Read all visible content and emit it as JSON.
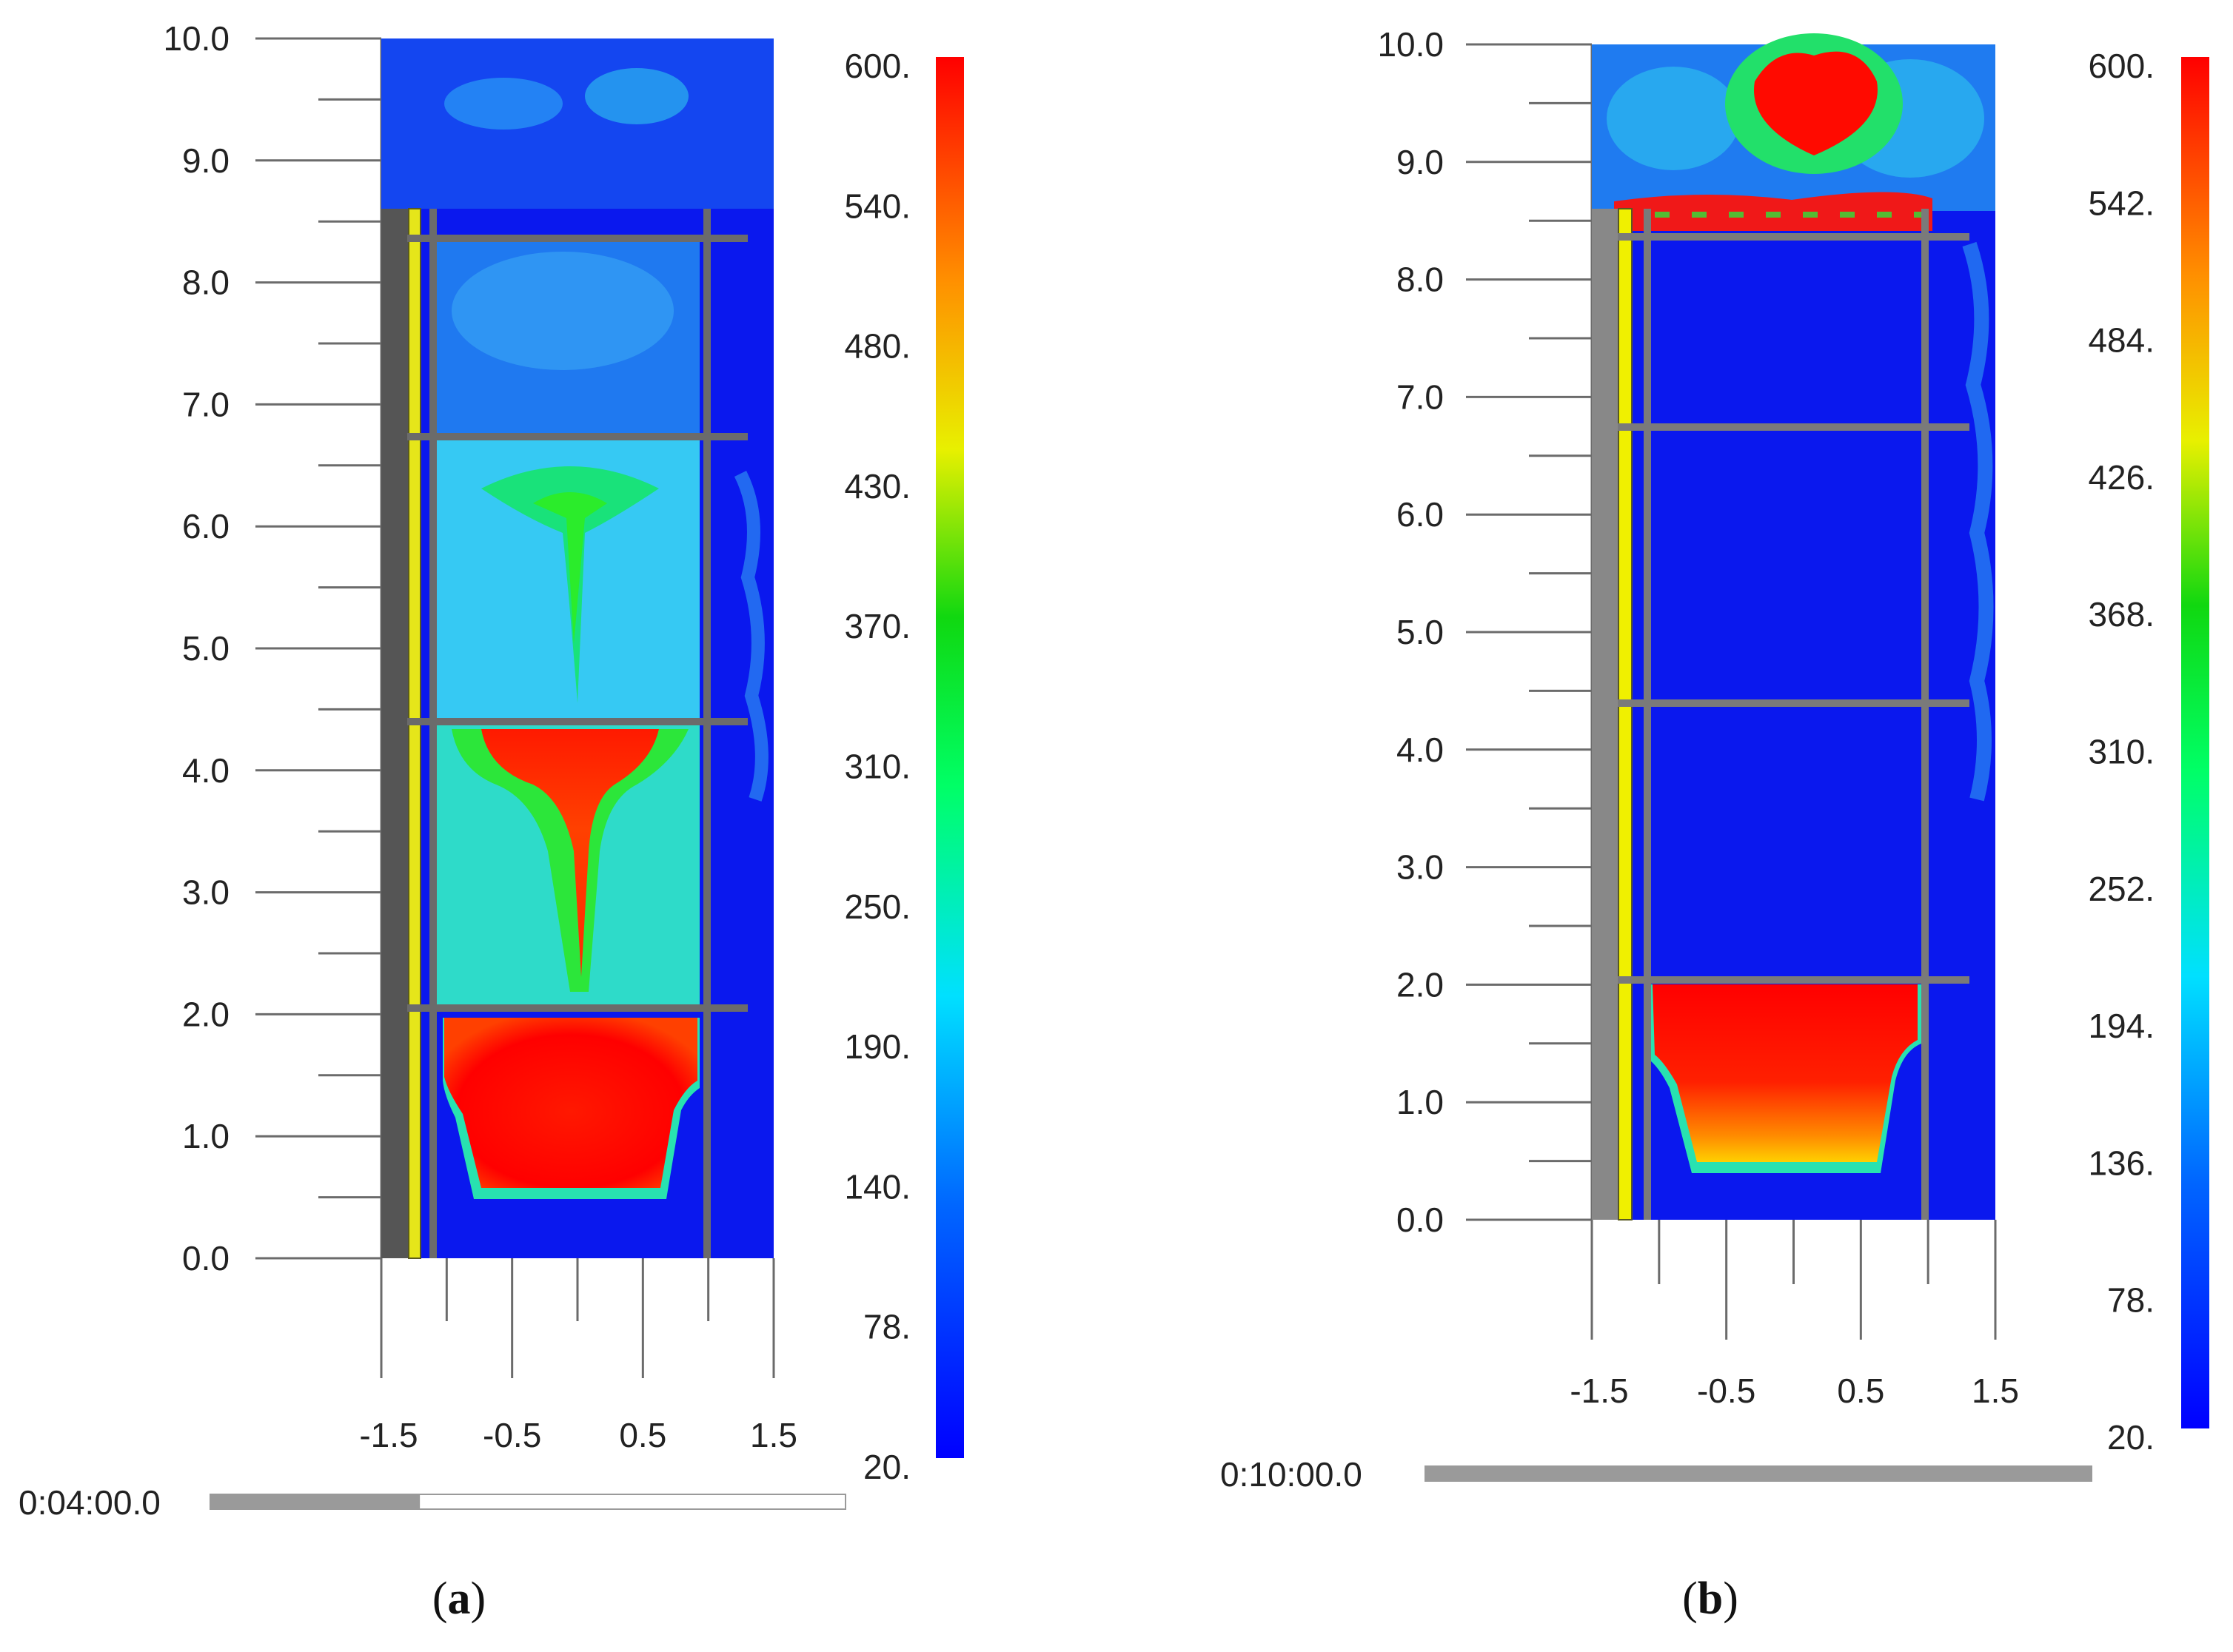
{
  "panels": [
    {
      "caption_letter": "a",
      "time": "0:04:00.0",
      "time_progress": 0.33,
      "y_ticks": [
        "10.0",
        "9.0",
        "8.0",
        "7.0",
        "6.0",
        "5.0",
        "4.0",
        "3.0",
        "2.0",
        "1.0",
        "0.0"
      ],
      "x_ticks": [
        "-1.5",
        "-0.5",
        "0.5",
        "1.5"
      ],
      "colorbar_ticks": [
        "600.",
        "540.",
        "480.",
        "430.",
        "370.",
        "310.",
        "250.",
        "190.",
        "140.",
        "78.",
        "20."
      ]
    },
    {
      "caption_letter": "b",
      "time": "0:10:00.0",
      "time_progress": 1.0,
      "y_ticks": [
        "10.0",
        "9.0",
        "8.0",
        "7.0",
        "6.0",
        "5.0",
        "4.0",
        "3.0",
        "2.0",
        "1.0",
        "0.0"
      ],
      "x_ticks": [
        "-1.5",
        "-0.5",
        "0.5",
        "1.5"
      ],
      "colorbar_ticks": [
        "600.",
        "542.",
        "484.",
        "426.",
        "368.",
        "310.",
        "252.",
        "194.",
        "136.",
        "78.",
        "20."
      ]
    }
  ],
  "colors": {
    "cold": "#0a1af0",
    "cyan": "#19e6e6",
    "green": "#1ee61e",
    "yellow": "#e6e61a",
    "orange": "#ff8c00",
    "hot": "#ff0000",
    "frame": "#6b6b6b",
    "insulation": "#e6e61a",
    "wall": "#555555"
  }
}
